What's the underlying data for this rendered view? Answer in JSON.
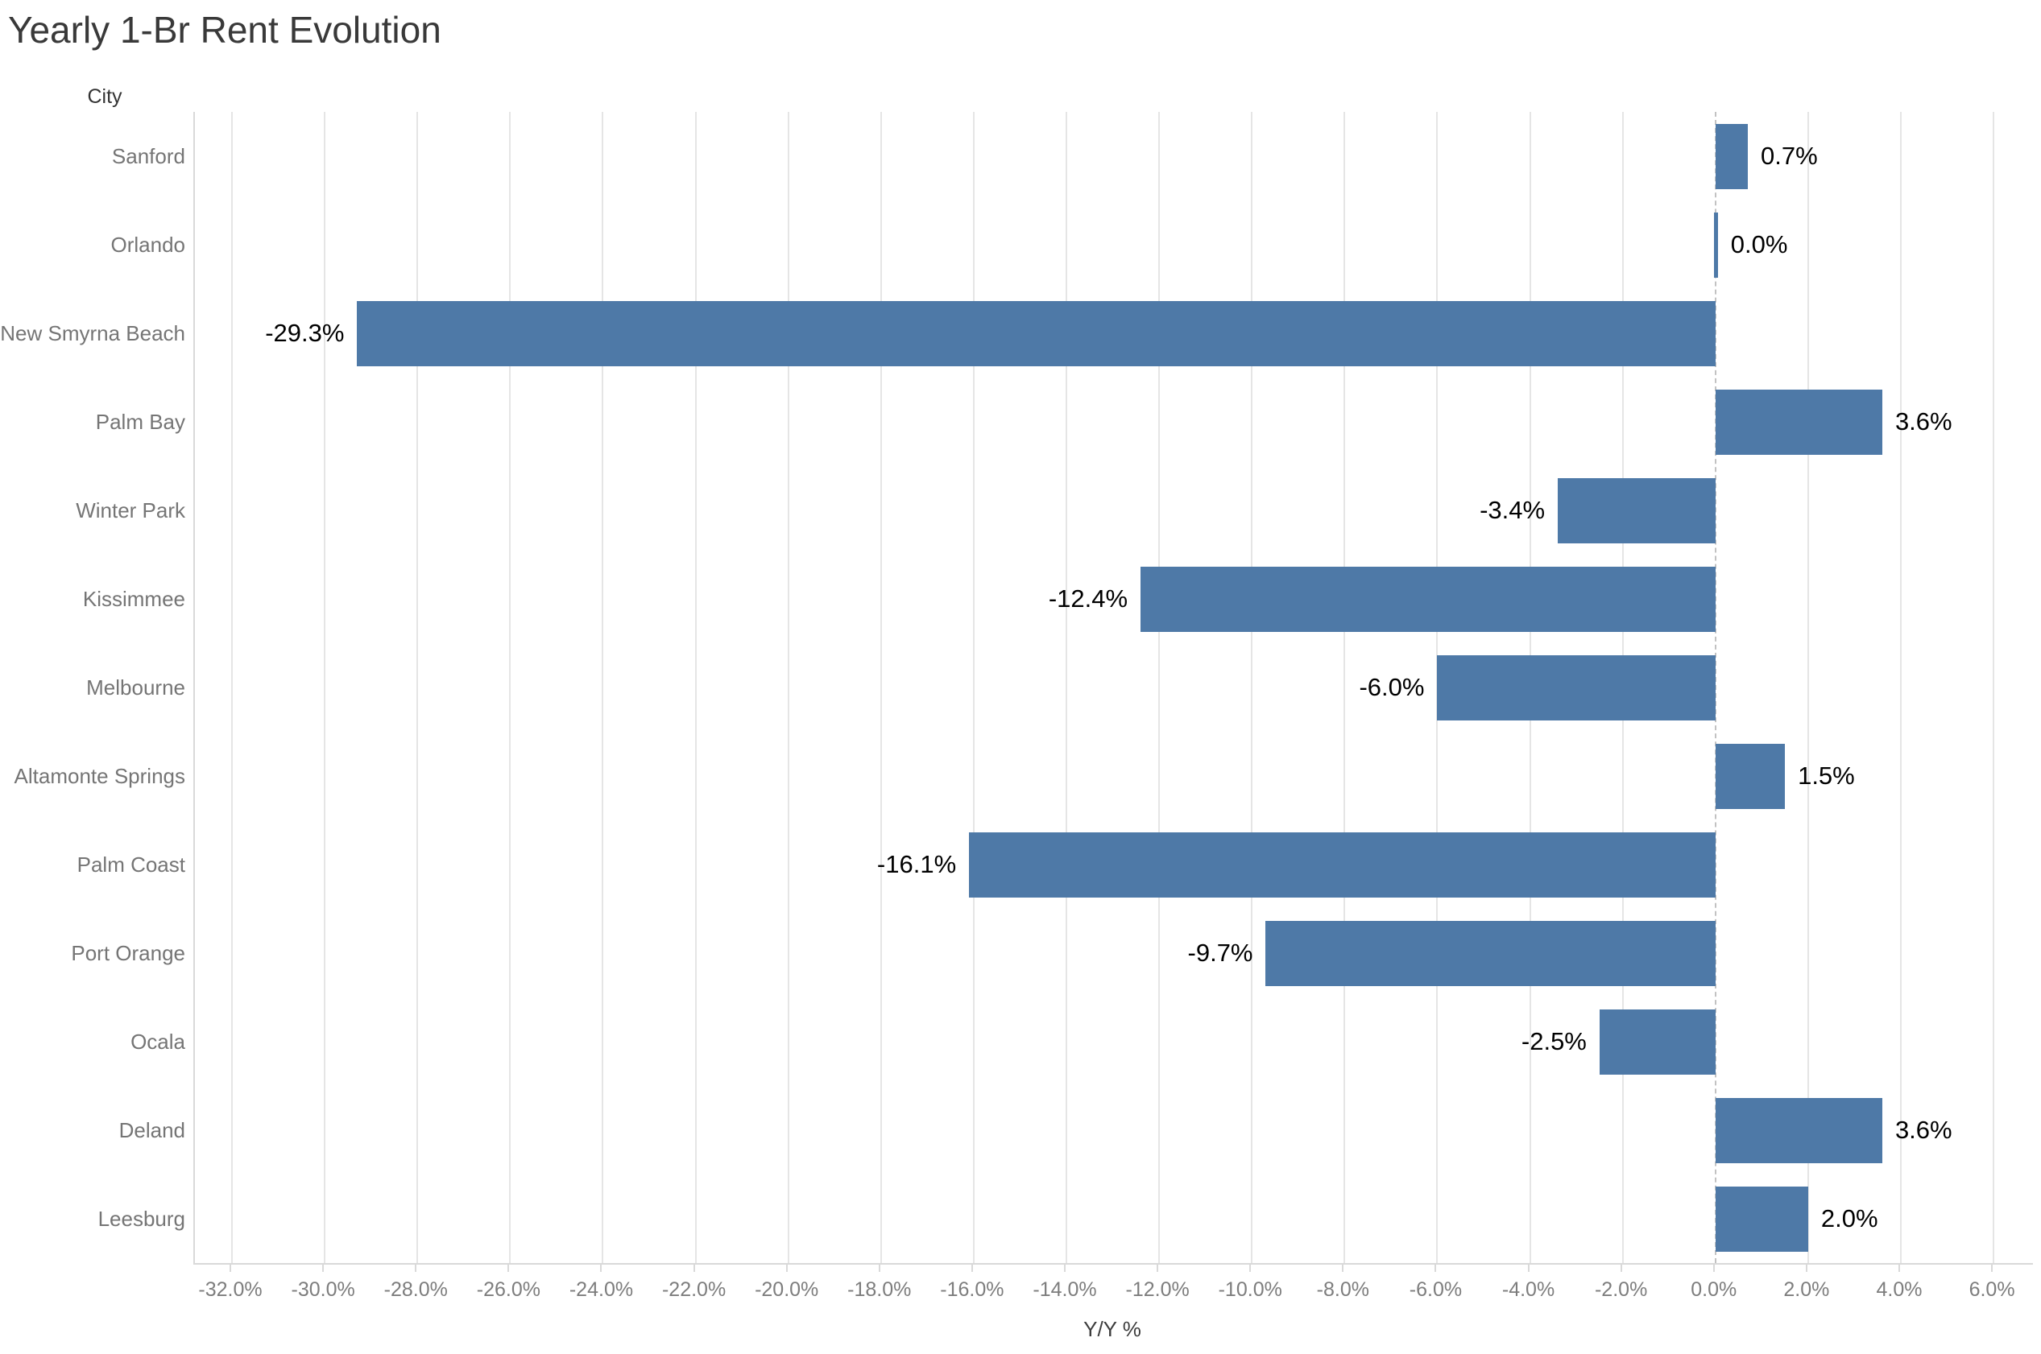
{
  "chart_data": {
    "type": "bar",
    "orientation": "horizontal",
    "title": "Yearly 1-Br Rent Evolution",
    "xlabel": "Y/Y %",
    "ylabel": "City",
    "categories": [
      "Sanford",
      "Orlando",
      "New Smyrna Beach",
      "Palm Bay",
      "Winter Park",
      "Kissimmee",
      "Melbourne",
      "Altamonte Springs",
      "Palm Coast",
      "Port Orange",
      "Ocala",
      "Deland",
      "Leesburg"
    ],
    "values": [
      0.7,
      0.0,
      -29.3,
      3.6,
      -3.4,
      -12.4,
      -6.0,
      1.5,
      -16.1,
      -9.7,
      -2.5,
      3.6,
      2.0
    ],
    "value_labels": [
      "0.7%",
      "0.0%",
      "-29.3%",
      "3.6%",
      "-3.4%",
      "-12.4%",
      "-6.0%",
      "1.5%",
      "-16.1%",
      "-9.7%",
      "-2.5%",
      "3.6%",
      "2.0%"
    ],
    "xlim": [
      -32.8,
      6.85
    ],
    "xticks": [
      -32,
      -30,
      -28,
      -26,
      -24,
      -22,
      -20,
      -18,
      -16,
      -14,
      -12,
      -10,
      -8,
      -6,
      -4,
      -2,
      0,
      2,
      4,
      6
    ],
    "xtick_labels": [
      "-32.0%",
      "-30.0%",
      "-28.0%",
      "-26.0%",
      "-24.0%",
      "-22.0%",
      "-20.0%",
      "-18.0%",
      "-16.0%",
      "-14.0%",
      "-12.0%",
      "-10.0%",
      "-8.0%",
      "-6.0%",
      "-4.0%",
      "-2.0%",
      "0.0%",
      "2.0%",
      "4.0%",
      "6.0%"
    ],
    "grid": "vertical-gridlines-on",
    "zero_line": "dashed-gray",
    "legend": "none",
    "bar_color": "#4e79a7"
  },
  "colors": {
    "bar": "#4e79a7",
    "title_text": "#393939",
    "axis_label_text": "#757575",
    "tick_text": "#7d7d7d",
    "value_text": "#000000",
    "gridline": "#e5e5e5",
    "zero_line": "#c2c2c2",
    "axis_line": "#d9d9d9",
    "background": "#ffffff"
  }
}
